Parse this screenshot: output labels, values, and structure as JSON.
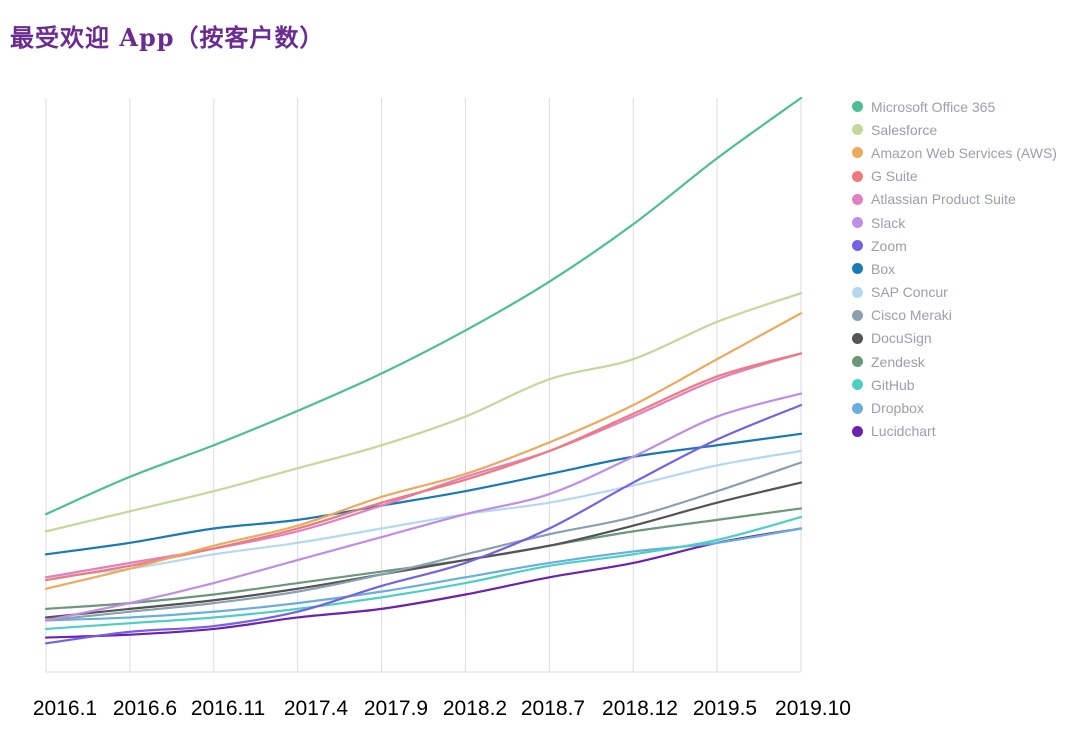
{
  "chart_data": {
    "type": "line",
    "title": "最受欢迎 App（按客户数）",
    "categories": [
      "2016.1",
      "2016.6",
      "2016.11",
      "2017.4",
      "2017.9",
      "2018.2",
      "2018.7",
      "2018.12",
      "2019.5",
      "2019.10"
    ],
    "xlabel": "",
    "ylabel": "",
    "ylim": [
      0,
      100
    ],
    "grid": "vertical",
    "legend_position": "right",
    "series": [
      {
        "name": "Microsoft Office 365",
        "color": "#4dbf94",
        "values": [
          27.5,
          34,
          39.5,
          45.5,
          52,
          59.5,
          68,
          78,
          89.5,
          100
        ]
      },
      {
        "name": "Salesforce",
        "color": "#c2d99a",
        "values": [
          24.5,
          28,
          31.5,
          35.5,
          39.5,
          44.5,
          51,
          54.5,
          61,
          66
        ]
      },
      {
        "name": "Amazon Web Services (AWS)",
        "color": "#eda95c",
        "values": [
          14.5,
          18,
          22,
          25.5,
          30.5,
          34.5,
          40,
          46.5,
          54.5,
          62.5
        ]
      },
      {
        "name": "G Suite",
        "color": "#f07a7a",
        "values": [
          16,
          18.5,
          21.5,
          25,
          29.5,
          33.5,
          38.5,
          45,
          51.5,
          55.5
        ]
      },
      {
        "name": "Atlassian Product Suite",
        "color": "#e37ec0",
        "values": [
          16.5,
          19,
          21.5,
          24.5,
          29,
          34,
          38.5,
          44.5,
          51,
          55.5
        ]
      },
      {
        "name": "Slack",
        "color": "#c08de6",
        "values": [
          9,
          12,
          15.5,
          19.5,
          23.5,
          27.5,
          31,
          37.5,
          44.5,
          48.5
        ]
      },
      {
        "name": "Zoom",
        "color": "#7661e3",
        "values": [
          5,
          7,
          8,
          10.5,
          15,
          19,
          25,
          33,
          40.5,
          46.5
        ]
      },
      {
        "name": "Box",
        "color": "#1a7ab5",
        "values": [
          20.5,
          22.5,
          25,
          26.5,
          29,
          31.5,
          34.5,
          37.5,
          39.5,
          41.5
        ]
      },
      {
        "name": "SAP Concur",
        "color": "#b4d9ef",
        "values": [
          16.5,
          18,
          20.5,
          22.5,
          25,
          27.5,
          29.5,
          32.5,
          36,
          38.5
        ]
      },
      {
        "name": "Cisco Meraki",
        "color": "#8aa0b0",
        "values": [
          9,
          10.5,
          12,
          14,
          17,
          20.5,
          24,
          27,
          31.5,
          36.5
        ]
      },
      {
        "name": "DocuSign",
        "color": "#545454",
        "values": [
          9.5,
          11,
          12.5,
          14.5,
          17,
          19.5,
          22,
          25.5,
          29.5,
          33
        ]
      },
      {
        "name": "Zendesk",
        "color": "#6a9878",
        "values": [
          11,
          12,
          13.5,
          15.5,
          17.5,
          19.5,
          22,
          24.5,
          26.5,
          28.5
        ]
      },
      {
        "name": "GitHub",
        "color": "#4dd0c4",
        "values": [
          7.5,
          8.5,
          9.5,
          11,
          13,
          15.5,
          18.5,
          20.5,
          23,
          27
        ]
      },
      {
        "name": "Dropbox",
        "color": "#6aaedd",
        "values": [
          9,
          9.5,
          10.5,
          12,
          14,
          16.5,
          19,
          21,
          22.5,
          25
        ]
      },
      {
        "name": "Lucidchart",
        "color": "#6b22b0",
        "values": [
          6,
          6.5,
          7.5,
          9.5,
          11,
          13.5,
          16.5,
          19,
          22.5,
          25
        ]
      }
    ]
  }
}
